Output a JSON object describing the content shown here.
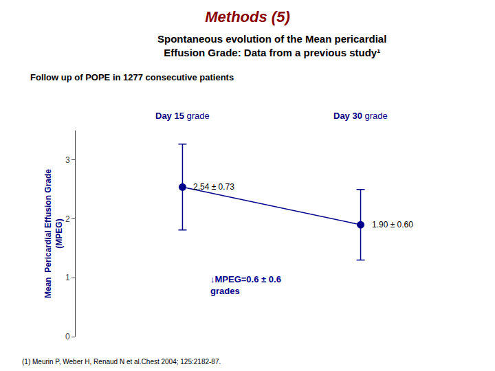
{
  "chart_data": {
    "type": "line",
    "title": "Methods (5)",
    "subtitle": [
      "Spontaneous evolution of the Mean pericardial",
      "Effusion Grade: Data from a previous study¹"
    ],
    "y_label": [
      "Mean  Pericardial Effusion Grade",
      "(MPEG)"
    ],
    "categories": [
      "Day 15",
      "Day 30"
    ],
    "values": [
      2.54,
      1.9
    ],
    "errors": [
      0.73,
      0.6
    ],
    "value_labels": [
      "2.54 ± 0.73",
      "1.90 ± 0.60"
    ],
    "data_labels": true,
    "color": "#00008B",
    "marker": "circle",
    "ylim": [
      0,
      3.5
    ],
    "yticks": [
      0,
      1,
      2,
      3
    ],
    "tick_labels": "y",
    "grid": false,
    "annotations": [
      {
        "text": "grade",
        "category": "Day 15"
      },
      {
        "text": "grade",
        "category": "Day 30"
      },
      {
        "text": "↓MPEG=0.6 ± 0.6\ngrades"
      },
      {
        "text": "Follow up of POPE in 1277 consecutive patients"
      },
      {
        "text": "(1) Meurin P, Weber H, Renaud N et al.Chest 2004; 125:2182-87."
      }
    ]
  }
}
